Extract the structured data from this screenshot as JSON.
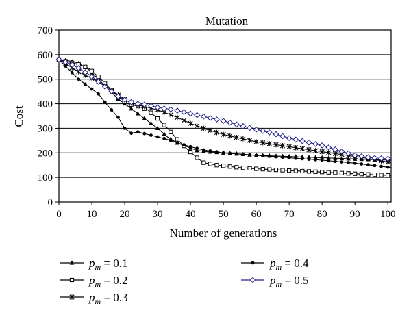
{
  "chart_data": {
    "type": "line",
    "title": "Mutation",
    "xlabel": "Number of generations",
    "ylabel": "Cost",
    "xlim": [
      0,
      101
    ],
    "ylim": [
      0,
      700
    ],
    "xticks": [
      "0",
      "10",
      "20",
      "30",
      "40",
      "50",
      "60",
      "70",
      "80",
      "90",
      "100"
    ],
    "yticks": [
      "0",
      "100",
      "200",
      "300",
      "400",
      "500",
      "600",
      "700"
    ],
    "grid": "horizontal",
    "legend_position": "bottom",
    "series": [
      {
        "name_prefix": "p",
        "name_sub": "m",
        "name_value": " = 0.1",
        "marker": "triangle",
        "color": "#000000",
        "points": [
          [
            0,
            580
          ],
          [
            3,
            575
          ],
          [
            6,
            565
          ],
          [
            9,
            540
          ],
          [
            12,
            500
          ],
          [
            15,
            460
          ],
          [
            18,
            420
          ],
          [
            21,
            390
          ],
          [
            24,
            360
          ],
          [
            27,
            330
          ],
          [
            30,
            300
          ],
          [
            33,
            265
          ],
          [
            36,
            240
          ],
          [
            39,
            225
          ],
          [
            42,
            210
          ],
          [
            45,
            205
          ],
          [
            50,
            200
          ],
          [
            60,
            190
          ],
          [
            70,
            185
          ],
          [
            80,
            180
          ],
          [
            90,
            175
          ],
          [
            101,
            170
          ]
        ]
      },
      {
        "name_prefix": "p",
        "name_sub": "m",
        "name_value": " = 0.2",
        "marker": "square",
        "color": "#000000",
        "points": [
          [
            0,
            580
          ],
          [
            3,
            570
          ],
          [
            6,
            560
          ],
          [
            9,
            545
          ],
          [
            12,
            510
          ],
          [
            15,
            470
          ],
          [
            18,
            430
          ],
          [
            21,
            400
          ],
          [
            24,
            390
          ],
          [
            27,
            375
          ],
          [
            30,
            340
          ],
          [
            33,
            300
          ],
          [
            36,
            255
          ],
          [
            39,
            215
          ],
          [
            42,
            180
          ],
          [
            44,
            160
          ],
          [
            48,
            150
          ],
          [
            55,
            140
          ],
          [
            60,
            135
          ],
          [
            70,
            128
          ],
          [
            80,
            122
          ],
          [
            90,
            115
          ],
          [
            101,
            108
          ]
        ]
      },
      {
        "name_prefix": "p",
        "name_sub": "m",
        "name_value": " = 0.3",
        "marker": "star",
        "color": "#000000",
        "points": [
          [
            0,
            580
          ],
          [
            3,
            555
          ],
          [
            6,
            530
          ],
          [
            9,
            510
          ],
          [
            12,
            490
          ],
          [
            15,
            465
          ],
          [
            18,
            435
          ],
          [
            21,
            410
          ],
          [
            24,
            395
          ],
          [
            27,
            385
          ],
          [
            30,
            375
          ],
          [
            35,
            350
          ],
          [
            40,
            320
          ],
          [
            45,
            295
          ],
          [
            50,
            275
          ],
          [
            55,
            260
          ],
          [
            60,
            245
          ],
          [
            65,
            235
          ],
          [
            70,
            225
          ],
          [
            75,
            215
          ],
          [
            80,
            205
          ],
          [
            85,
            195
          ],
          [
            90,
            185
          ],
          [
            95,
            175
          ],
          [
            101,
            160
          ]
        ]
      },
      {
        "name_prefix": "p",
        "name_sub": "m",
        "name_value": " = 0.4",
        "marker": "dot",
        "color": "#000000",
        "points": [
          [
            0,
            580
          ],
          [
            3,
            540
          ],
          [
            6,
            500
          ],
          [
            9,
            470
          ],
          [
            12,
            440
          ],
          [
            15,
            390
          ],
          [
            18,
            345
          ],
          [
            20,
            300
          ],
          [
            22,
            280
          ],
          [
            24,
            285
          ],
          [
            27,
            275
          ],
          [
            30,
            265
          ],
          [
            33,
            255
          ],
          [
            36,
            240
          ],
          [
            40,
            225
          ],
          [
            44,
            212
          ],
          [
            50,
            200
          ],
          [
            55,
            195
          ],
          [
            60,
            190
          ],
          [
            70,
            180
          ],
          [
            80,
            170
          ],
          [
            90,
            158
          ],
          [
            101,
            140
          ]
        ]
      },
      {
        "name_prefix": "p",
        "name_sub": "m",
        "name_value": " = 0.5",
        "marker": "diamond",
        "color": "#22228a",
        "points": [
          [
            0,
            580
          ],
          [
            3,
            565
          ],
          [
            6,
            545
          ],
          [
            9,
            520
          ],
          [
            12,
            490
          ],
          [
            15,
            460
          ],
          [
            18,
            430
          ],
          [
            21,
            410
          ],
          [
            24,
            400
          ],
          [
            27,
            395
          ],
          [
            30,
            385
          ],
          [
            35,
            375
          ],
          [
            40,
            360
          ],
          [
            45,
            345
          ],
          [
            50,
            330
          ],
          [
            55,
            312
          ],
          [
            60,
            295
          ],
          [
            65,
            280
          ],
          [
            70,
            260
          ],
          [
            75,
            245
          ],
          [
            80,
            230
          ],
          [
            85,
            210
          ],
          [
            90,
            190
          ],
          [
            95,
            180
          ],
          [
            101,
            175
          ]
        ]
      }
    ]
  }
}
